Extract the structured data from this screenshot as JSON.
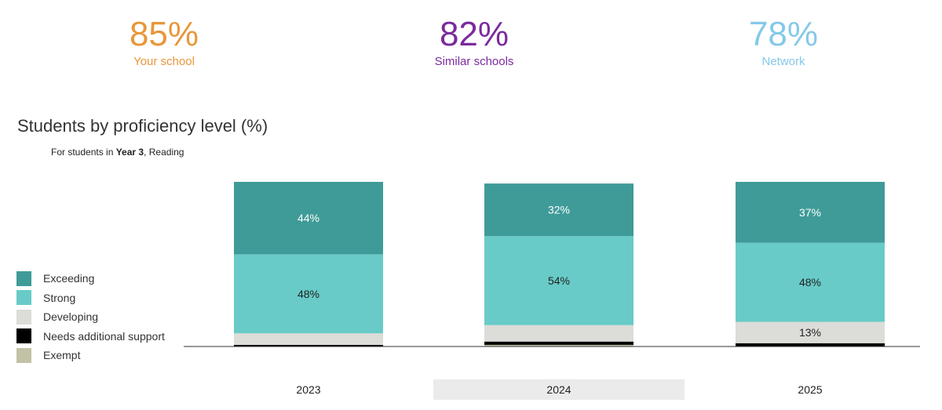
{
  "kpis": [
    {
      "value": "85%",
      "label": "Your school",
      "color": "#e8973a"
    },
    {
      "value": "82%",
      "label": "Similar schools",
      "color": "#7b2a9e"
    },
    {
      "value": "78%",
      "label": "Network",
      "color": "#85c9e8"
    }
  ],
  "chart_data": {
    "type": "bar",
    "stacked": true,
    "title": "Students by proficiency level (%)",
    "subtitle_prefix": "For students in ",
    "subtitle_bold": "Year 3",
    "subtitle_suffix": ", Reading",
    "categories": [
      "2023",
      "2024",
      "2025"
    ],
    "highlighted_category": "2024",
    "legend_position": "left",
    "series": [
      {
        "name": "Exceeding",
        "color": "#3f9b98",
        "label_color": "#ffffff",
        "values": [
          44,
          32,
          37
        ],
        "labels": [
          "44%",
          "32%",
          "37%"
        ]
      },
      {
        "name": "Strong",
        "color": "#68cbc8",
        "label_color": "#222222",
        "values": [
          48,
          54,
          48
        ],
        "labels": [
          "48%",
          "54%",
          "48%"
        ]
      },
      {
        "name": "Developing",
        "color": "#dcdcd8",
        "label_color": "#222222",
        "values": [
          7,
          10,
          13
        ],
        "labels": [
          "",
          "",
          "13%"
        ]
      },
      {
        "name": "Needs additional support",
        "color": "#000000",
        "label_color": "#ffffff",
        "values": [
          1,
          2,
          2
        ],
        "labels": [
          "",
          "",
          ""
        ]
      },
      {
        "name": "Exempt",
        "color": "#c3c1a6",
        "label_color": "#222222",
        "values": [
          0,
          1,
          0
        ],
        "labels": [
          "",
          "",
          ""
        ]
      }
    ]
  }
}
